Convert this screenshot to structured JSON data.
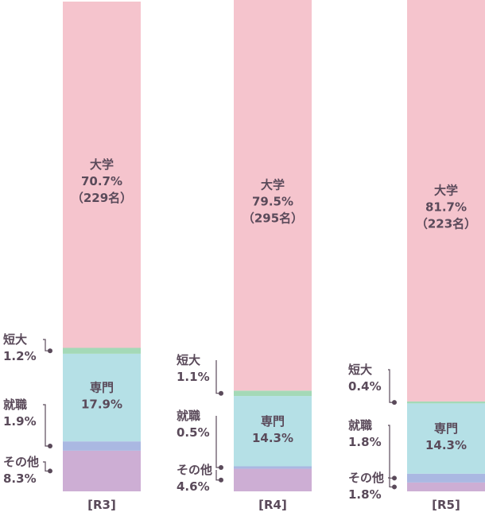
{
  "chart_data": {
    "type": "bar",
    "stacked": true,
    "orientation": "vertical",
    "percent_scale": true,
    "categories": [
      "[R3]",
      "[R4]",
      "[R5]"
    ],
    "series": [
      {
        "name": "その他",
        "color": "#cdaed4",
        "values": [
          8.3,
          4.6,
          1.8
        ]
      },
      {
        "name": "就職",
        "color": "#aab8e2",
        "values": [
          1.9,
          0.5,
          1.8
        ]
      },
      {
        "name": "専門",
        "color": "#b5e0e6",
        "values": [
          17.9,
          14.3,
          14.3
        ]
      },
      {
        "name": "短大",
        "color": "#a4d9b7",
        "values": [
          1.2,
          1.1,
          0.4
        ]
      },
      {
        "name": "大学",
        "color": "#f5c4cd",
        "values": [
          70.7,
          79.5,
          81.7
        ]
      }
    ],
    "inside_labels": [
      {
        "category": "[R3]",
        "series": "大学",
        "lines": [
          "大学",
          "70.7%",
          "（229名）"
        ]
      },
      {
        "category": "[R4]",
        "series": "大学",
        "lines": [
          "大学",
          "79.5%",
          "（295名）"
        ]
      },
      {
        "category": "[R5]",
        "series": "大学",
        "lines": [
          "大学",
          "81.7%",
          "（223名）"
        ]
      },
      {
        "category": "[R3]",
        "series": "専門",
        "lines": [
          "専門",
          "17.9%"
        ]
      },
      {
        "category": "[R4]",
        "series": "専門",
        "lines": [
          "専門",
          "14.3%"
        ]
      },
      {
        "category": "[R5]",
        "series": "専門",
        "lines": [
          "専門",
          "14.3%"
        ]
      }
    ],
    "side_labels": [
      {
        "category": "[R3]",
        "series": "短大",
        "lines": [
          "短大",
          "1.2%"
        ]
      },
      {
        "category": "[R3]",
        "series": "就職",
        "lines": [
          "就職",
          "1.9%"
        ]
      },
      {
        "category": "[R3]",
        "series": "その他",
        "lines": [
          "その他",
          "8.3%"
        ]
      },
      {
        "category": "[R4]",
        "series": "短大",
        "lines": [
          "短大",
          "1.1%"
        ]
      },
      {
        "category": "[R4]",
        "series": "就職",
        "lines": [
          "就職",
          "0.5%"
        ]
      },
      {
        "category": "[R4]",
        "series": "その他",
        "lines": [
          "その他",
          "4.6%"
        ]
      },
      {
        "category": "[R5]",
        "series": "短大",
        "lines": [
          "短大",
          "0.4%"
        ]
      },
      {
        "category": "[R5]",
        "series": "就職",
        "lines": [
          "就職",
          "1.8%"
        ]
      },
      {
        "category": "[R5]",
        "series": "その他",
        "lines": [
          "その他",
          "1.8%"
        ]
      }
    ],
    "ylim": [
      0,
      100
    ],
    "grid": false,
    "legend": false
  }
}
